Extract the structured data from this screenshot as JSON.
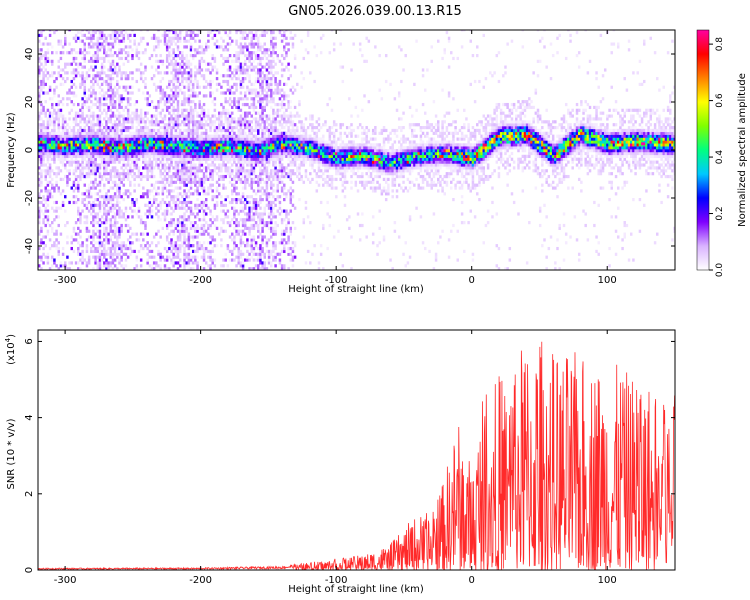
{
  "title": "GN05.2026.039.00.13.R15",
  "chart_data": [
    {
      "type": "heatmap",
      "name": "spectrogram",
      "xlabel": "Height of straight line (km)",
      "ylabel": "Frequency (Hz)",
      "xlim": [
        -320,
        150
      ],
      "ylim": [
        -50,
        50
      ],
      "xticks": [
        -300,
        -200,
        -100,
        0,
        100
      ],
      "yticks": [
        -40,
        -20,
        0,
        20,
        40
      ],
      "colorbar": {
        "label": "Normalized spectral amplitude",
        "range": [
          0.0,
          0.85
        ],
        "ticks": [
          0.0,
          0.2,
          0.4,
          0.6,
          0.8
        ],
        "tick_labels": [
          "0.0",
          "0.2",
          "0.4",
          "0.6",
          "0.8"
        ],
        "colormap": [
          "#ffffff",
          "#d9b3ff",
          "#7f00ff",
          "#0000ff",
          "#00c8ff",
          "#00ff80",
          "#80ff00",
          "#ffff00",
          "#ff8000",
          "#ff0000",
          "#ff00a0"
        ]
      },
      "ridge_trace": {
        "x": [
          -320,
          -300,
          -280,
          -260,
          -240,
          -220,
          -200,
          -180,
          -160,
          -140,
          -120,
          -100,
          -80,
          -60,
          -40,
          -20,
          0,
          20,
          40,
          60,
          80,
          100,
          120,
          150
        ],
        "y": [
          2,
          1,
          2,
          0,
          2,
          1,
          0,
          1,
          -1,
          2,
          0,
          -4,
          -3,
          -6,
          -3,
          -2,
          -4,
          5,
          6,
          -3,
          6,
          2,
          3,
          2
        ]
      },
      "peak_amplitude": 0.85,
      "peak_location": {
        "x": 125,
        "y": 2
      }
    },
    {
      "type": "line",
      "name": "snr",
      "xlabel": "Height of straight line (km)",
      "ylabel": "SNR (10 * v/v)",
      "scale_note": "(x10^4)",
      "xlim": [
        -320,
        150
      ],
      "ylim": [
        0,
        6.3
      ],
      "xticks": [
        -300,
        -200,
        -100,
        0,
        100
      ],
      "yticks": [
        0,
        2,
        4,
        6
      ],
      "color": "#ff2a2a",
      "envelope": {
        "x": [
          -320,
          -200,
          -140,
          -120,
          -100,
          -80,
          -60,
          -40,
          -30,
          -20,
          -10,
          0,
          10,
          20,
          30,
          40,
          50,
          60,
          80,
          100,
          120,
          150
        ],
        "y": [
          0.05,
          0.06,
          0.1,
          0.2,
          0.3,
          0.4,
          0.7,
          1.5,
          1.5,
          2.5,
          4.0,
          2.8,
          5.0,
          5.2,
          5.5,
          6.2,
          6.3,
          5.8,
          5.7,
          5.5,
          5.2,
          4.7
        ]
      },
      "peak": {
        "x": 50,
        "y": 6.3
      }
    }
  ]
}
